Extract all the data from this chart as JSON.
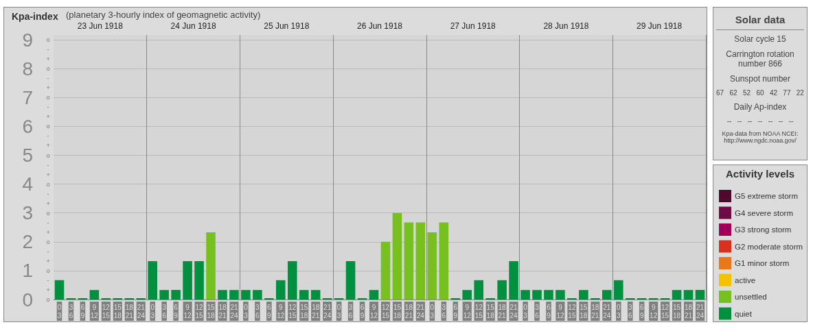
{
  "chart_data": [
    {
      "type": "bar",
      "title": "Kpa-index",
      "subtitle": "(planetary 3-hourly index of geomagnetic activity)",
      "legend_title": "Activity levels",
      "categories": [
        "0\n3",
        "3\n6",
        "6\n9",
        "9\n12",
        "12\n15",
        "15\n18",
        "18\n21",
        "21\n24",
        "0\n3",
        "3\n6",
        "6\n9",
        "9\n12",
        "12\n15",
        "15\n18",
        "18\n21",
        "21\n24",
        "0\n3",
        "3\n6",
        "6\n9",
        "9\n12",
        "12\n15",
        "15\n18",
        "18\n21",
        "21\n24",
        "0\n3",
        "3\n6",
        "6\n9",
        "9\n12",
        "12\n15",
        "15\n18",
        "18\n21",
        "21\n24",
        "0\n3",
        "3\n6",
        "6\n9",
        "9\n12",
        "12\n15",
        "15\n18",
        "18\n21",
        "21\n24",
        "0\n3",
        "3\n6",
        "6\n9",
        "9\n12",
        "12\n15",
        "15\n18",
        "18\n21",
        "21\n24",
        "0\n3",
        "3\n6",
        "6\n9",
        "9\n12",
        "12\n15",
        "15\n18",
        "18\n21",
        "21\n24"
      ],
      "series": [
        {
          "name": "G5 extreme storm",
          "color": "#4d0a2e",
          "values": [
            null,
            null,
            null,
            null,
            null,
            null,
            null,
            null,
            null,
            null,
            null,
            null,
            null,
            null,
            null,
            null,
            null,
            null,
            null,
            null,
            null,
            null,
            null,
            null,
            null,
            null,
            null,
            null,
            null,
            null,
            null,
            null,
            null,
            null,
            null,
            null,
            null,
            null,
            null,
            null,
            null,
            null,
            null,
            null,
            null,
            null,
            null,
            null,
            null,
            null,
            null,
            null,
            null,
            null,
            null,
            null
          ]
        },
        {
          "name": "G4 severe storm",
          "color": "#6e0a45",
          "values": [
            null,
            null,
            null,
            null,
            null,
            null,
            null,
            null,
            null,
            null,
            null,
            null,
            null,
            null,
            null,
            null,
            null,
            null,
            null,
            null,
            null,
            null,
            null,
            null,
            null,
            null,
            null,
            null,
            null,
            null,
            null,
            null,
            null,
            null,
            null,
            null,
            null,
            null,
            null,
            null,
            null,
            null,
            null,
            null,
            null,
            null,
            null,
            null,
            null,
            null,
            null,
            null,
            null,
            null,
            null,
            null
          ]
        },
        {
          "name": "G3 strong storm",
          "color": "#a0005a",
          "values": [
            null,
            null,
            null,
            null,
            null,
            null,
            null,
            null,
            null,
            null,
            null,
            null,
            null,
            null,
            null,
            null,
            null,
            null,
            null,
            null,
            null,
            null,
            null,
            null,
            null,
            null,
            null,
            null,
            null,
            null,
            null,
            null,
            null,
            null,
            null,
            null,
            null,
            null,
            null,
            null,
            null,
            null,
            null,
            null,
            null,
            null,
            null,
            null,
            null,
            null,
            null,
            null,
            null,
            null,
            null,
            null
          ]
        },
        {
          "name": "G2 moderate storm",
          "color": "#d8321e",
          "values": [
            null,
            null,
            null,
            null,
            null,
            null,
            null,
            null,
            null,
            null,
            null,
            null,
            null,
            null,
            null,
            null,
            null,
            null,
            null,
            null,
            null,
            null,
            null,
            null,
            null,
            null,
            null,
            null,
            null,
            null,
            null,
            null,
            null,
            null,
            null,
            null,
            null,
            null,
            null,
            null,
            null,
            null,
            null,
            null,
            null,
            null,
            null,
            null,
            null,
            null,
            null,
            null,
            null,
            null,
            null,
            null
          ]
        },
        {
          "name": "G1 minor storm",
          "color": "#e8781a",
          "values": [
            null,
            null,
            null,
            null,
            null,
            null,
            null,
            null,
            null,
            null,
            null,
            null,
            null,
            null,
            null,
            null,
            null,
            null,
            null,
            null,
            null,
            null,
            null,
            null,
            null,
            null,
            null,
            null,
            null,
            null,
            null,
            null,
            null,
            null,
            null,
            null,
            null,
            null,
            null,
            null,
            null,
            null,
            null,
            null,
            null,
            null,
            null,
            null,
            null,
            null,
            null,
            null,
            null,
            null,
            null,
            null
          ]
        },
        {
          "name": "active",
          "color": "#f5c200",
          "values": [
            null,
            null,
            null,
            null,
            null,
            null,
            null,
            null,
            null,
            null,
            null,
            null,
            null,
            null,
            null,
            null,
            null,
            null,
            null,
            null,
            null,
            null,
            null,
            null,
            null,
            null,
            null,
            null,
            null,
            null,
            null,
            null,
            null,
            null,
            null,
            null,
            null,
            null,
            null,
            null,
            null,
            null,
            null,
            null,
            null,
            null,
            null,
            null,
            null,
            null,
            null,
            null,
            null,
            null,
            null,
            null
          ]
        },
        {
          "name": "unsettled",
          "color": "#78c020",
          "values": [
            null,
            null,
            null,
            null,
            null,
            null,
            null,
            null,
            null,
            null,
            null,
            null,
            null,
            2.33,
            null,
            null,
            null,
            null,
            null,
            null,
            null,
            null,
            null,
            null,
            null,
            null,
            null,
            null,
            2.0,
            3.0,
            2.67,
            2.67,
            2.33,
            2.67,
            null,
            null,
            null,
            null,
            null,
            null,
            null,
            null,
            null,
            null,
            null,
            null,
            null,
            null,
            null,
            null,
            null,
            null,
            null,
            null,
            null,
            null
          ]
        },
        {
          "name": "quiet",
          "color": "#009040",
          "values": [
            0.67,
            0,
            0,
            0.33,
            0,
            0,
            0,
            0,
            1.33,
            0.33,
            0.33,
            1.33,
            1.33,
            null,
            0.33,
            0.33,
            0.33,
            0.33,
            0,
            0.67,
            1.33,
            0.33,
            0.33,
            0,
            0,
            1.33,
            0,
            0.33,
            null,
            null,
            null,
            null,
            null,
            null,
            0,
            0.33,
            0.67,
            0,
            0.67,
            1.33,
            0.33,
            0.33,
            0.33,
            0.33,
            0,
            0.33,
            0,
            0.33,
            0.67,
            0,
            0,
            0,
            0,
            0.33,
            0.33,
            0.33
          ]
        }
      ],
      "ylim": [
        0,
        9.17
      ],
      "yticks": [
        0,
        1,
        2,
        3,
        4,
        5,
        6,
        7,
        8,
        9
      ],
      "grid": "y",
      "legend": "right",
      "annotations": [
        "23 Jun 1918",
        "24 Jun 1918",
        "25 Jun 1918",
        "26 Jun 1918",
        "27 Jun 1918",
        "28 Jun 1918",
        "29 Jun 1918",
        "o",
        "+",
        "-",
        "o",
        "+",
        "-",
        "o",
        "+",
        "-",
        "o",
        "+",
        "-",
        "o",
        "+",
        "-",
        "o",
        "+",
        "-",
        "o",
        "+",
        "-",
        "o",
        "+",
        "-",
        "o",
        "+",
        "-",
        "o"
      ]
    },
    {
      "type": "other",
      "title": "Solar data",
      "annotations": [
        "Solar cycle 15",
        "Carrington rotation number 866",
        "Sunspot number",
        "67   62   52   60   42   77   22",
        "Daily Ap-index",
        "--   --   --   --   --   --   --",
        "Kpa-data from NOAA NCEI: http://www.ngdc.noaa.gov/"
      ]
    }
  ]
}
